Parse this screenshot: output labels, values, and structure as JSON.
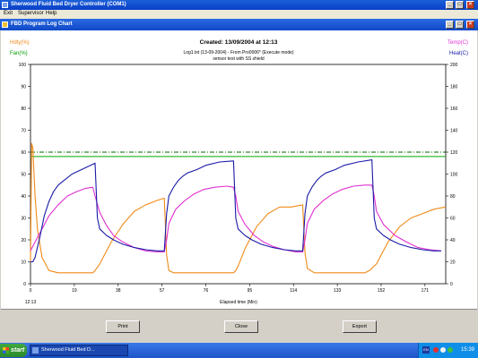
{
  "window": {
    "title": "Sherwood Fluid Bed Dryer Controller (COM1)",
    "min_glyph": "_",
    "max_glyph": "□",
    "close_glyph": "×"
  },
  "menu": {
    "items": [
      "Exit",
      "Supervisor",
      "Help"
    ]
  },
  "chart_window": {
    "title": "FBD Program Log Chart"
  },
  "chart_text": {
    "created": "Created: 13/09/2004 at 12:13",
    "log_line": "Log1.txt (13-09-2004) - From Pro0006* (Execute mode)",
    "note_line": "sensor test with SS shield",
    "left_label_1": "Hdty(%)",
    "left_label_2": "Fan(%)",
    "right_label_1": "Temp(C)",
    "right_label_2": "Heat(C)",
    "time_start": "12:13",
    "x_axis_title": "Elapsed time (Min)"
  },
  "chart_data": {
    "type": "line",
    "xlabel": "Elapsed time (Min)",
    "xlim": [
      0,
      180
    ],
    "x_ticks": [
      0,
      19,
      38,
      57,
      76,
      95,
      114,
      133,
      152,
      171
    ],
    "y_left": {
      "ylim": [
        0,
        100
      ],
      "ticks": [
        0,
        10,
        20,
        30,
        40,
        50,
        60,
        70,
        80,
        90,
        100
      ]
    },
    "y_right": {
      "ylim": [
        0,
        200
      ],
      "ticks": [
        0,
        20,
        40,
        60,
        80,
        100,
        120,
        140,
        160,
        180,
        200
      ]
    },
    "reference_lines": [
      {
        "axis": "right",
        "value": 120,
        "color": "#006400",
        "style": "dash-dot"
      },
      {
        "axis": "left",
        "value": 58,
        "color": "#00aa00",
        "style": "solid"
      }
    ],
    "series": [
      {
        "name": "Hdty(%)",
        "axis": "left",
        "color": "#f08a18",
        "x": [
          0,
          0.5,
          1,
          2,
          3,
          5,
          8,
          12,
          16,
          20,
          24,
          27,
          28,
          30,
          35,
          40,
          45,
          50,
          55,
          58,
          59,
          60,
          62,
          65,
          70,
          75,
          80,
          85,
          88,
          89,
          90,
          93,
          98,
          103,
          108,
          113,
          118,
          119,
          120,
          123,
          128,
          133,
          138,
          143,
          145,
          147,
          150,
          155,
          160,
          165,
          170,
          175,
          180
        ],
        "values": [
          10,
          64,
          62,
          40,
          25,
          12,
          6,
          5,
          5,
          5,
          5,
          5,
          6,
          9,
          19,
          27,
          33,
          36,
          38,
          39,
          13,
          6,
          5,
          5,
          5,
          5,
          5,
          5,
          5,
          6,
          8,
          16,
          26,
          32,
          35,
          35,
          36,
          14,
          7,
          5,
          5,
          5,
          5,
          5,
          5,
          6,
          9,
          19,
          26,
          30,
          32,
          34,
          35
        ]
      },
      {
        "name": "Temp(C)",
        "axis": "right",
        "color": "#e030d0",
        "x": [
          0,
          2,
          5,
          8,
          12,
          16,
          20,
          24,
          27,
          28,
          30,
          33,
          36,
          40,
          45,
          50,
          55,
          58,
          59,
          60,
          63,
          67,
          71,
          75,
          80,
          85,
          88,
          89,
          90,
          93,
          97,
          101,
          105,
          110,
          115,
          118,
          119,
          120,
          123,
          127,
          131,
          135,
          140,
          145,
          148,
          149,
          150,
          153,
          158,
          163,
          168,
          173,
          178
        ],
        "values": [
          30,
          38,
          50,
          62,
          72,
          80,
          84,
          87,
          88,
          80,
          65,
          53,
          44,
          38,
          33,
          30,
          29,
          29,
          40,
          55,
          68,
          76,
          82,
          86,
          88,
          89,
          88,
          80,
          66,
          54,
          44,
          38,
          34,
          31,
          29,
          29,
          40,
          55,
          68,
          76,
          82,
          86,
          89,
          90,
          90,
          80,
          66,
          54,
          44,
          38,
          33,
          31,
          30
        ]
      },
      {
        "name": "Heat(C)",
        "axis": "right",
        "color": "#1a1aa8",
        "x": [
          0,
          1,
          2,
          4,
          6,
          8,
          10,
          12,
          15,
          18,
          22,
          26,
          28,
          29,
          30,
          33,
          36,
          40,
          45,
          50,
          55,
          58,
          59,
          60,
          62,
          64,
          66,
          68,
          72,
          76,
          82,
          88,
          89,
          90,
          93,
          96,
          100,
          105,
          110,
          115,
          118,
          119,
          120,
          122,
          124,
          126,
          128,
          132,
          136,
          142,
          148,
          149,
          150,
          153,
          156,
          160,
          165,
          170,
          175,
          178
        ],
        "values": [
          20,
          20,
          24,
          42,
          62,
          75,
          84,
          90,
          95,
          100,
          104,
          108,
          110,
          60,
          50,
          44,
          40,
          36,
          33,
          31,
          30,
          30,
          64,
          80,
          88,
          94,
          98,
          101,
          104,
          108,
          111,
          112,
          60,
          50,
          44,
          40,
          36,
          33,
          31,
          30,
          30,
          64,
          80,
          88,
          94,
          98,
          101,
          104,
          108,
          111,
          113,
          60,
          50,
          44,
          40,
          36,
          33,
          31,
          30,
          30
        ]
      }
    ]
  },
  "buttons": {
    "print": "Print",
    "close": "Close",
    "export": "Export"
  },
  "taskbar": {
    "start": "start",
    "task": "Sherwood Fluid Bed D...",
    "lang": "EN",
    "clock": "15:39"
  }
}
